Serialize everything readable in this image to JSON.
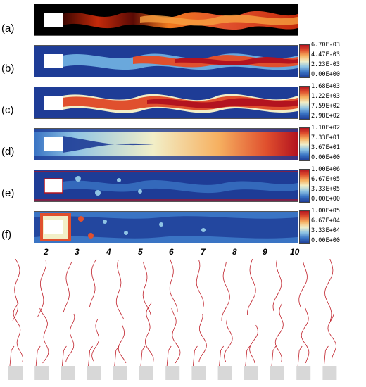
{
  "panels": [
    {
      "label": "(a)",
      "ticks": []
    },
    {
      "label": "(b)",
      "ticks": [
        "6.70E-03",
        "4.47E-03",
        "2.23E-03",
        "0.00E+00"
      ]
    },
    {
      "label": "(c)",
      "ticks": [
        "1.68E+03",
        "1.22E+03",
        "7.59E+02",
        "2.98E+02"
      ]
    },
    {
      "label": "(d)",
      "ticks": [
        "1.10E+02",
        "7.33E+01",
        "3.67E+01",
        "0.00E+00"
      ]
    },
    {
      "label": "(e)",
      "ticks": [
        "1.00E+06",
        "6.67E+05",
        "3.33E+05",
        "0.00E+00"
      ]
    },
    {
      "label": "(f)",
      "ticks": [
        "1.00E+05",
        "6.67E+04",
        "3.33E+04",
        "0.00E+00"
      ]
    }
  ],
  "x_axis_ticks": [
    "2",
    "3",
    "4",
    "5",
    "6",
    "7",
    "8",
    "9",
    "10"
  ],
  "colors": {
    "colormap": [
      "#1e3c96",
      "#3a74c4",
      "#8fc4e4",
      "#f2efc8",
      "#f6b060",
      "#e0502e",
      "#b3131f"
    ],
    "flame_colormap": [
      "#000000",
      "#6a0a05",
      "#c42a0a",
      "#f07a1e",
      "#ffd060"
    ],
    "front_line": "#c0202a",
    "bluff_body": "#d8d8d8"
  },
  "flame_front_sequence": {
    "frames": 13
  }
}
